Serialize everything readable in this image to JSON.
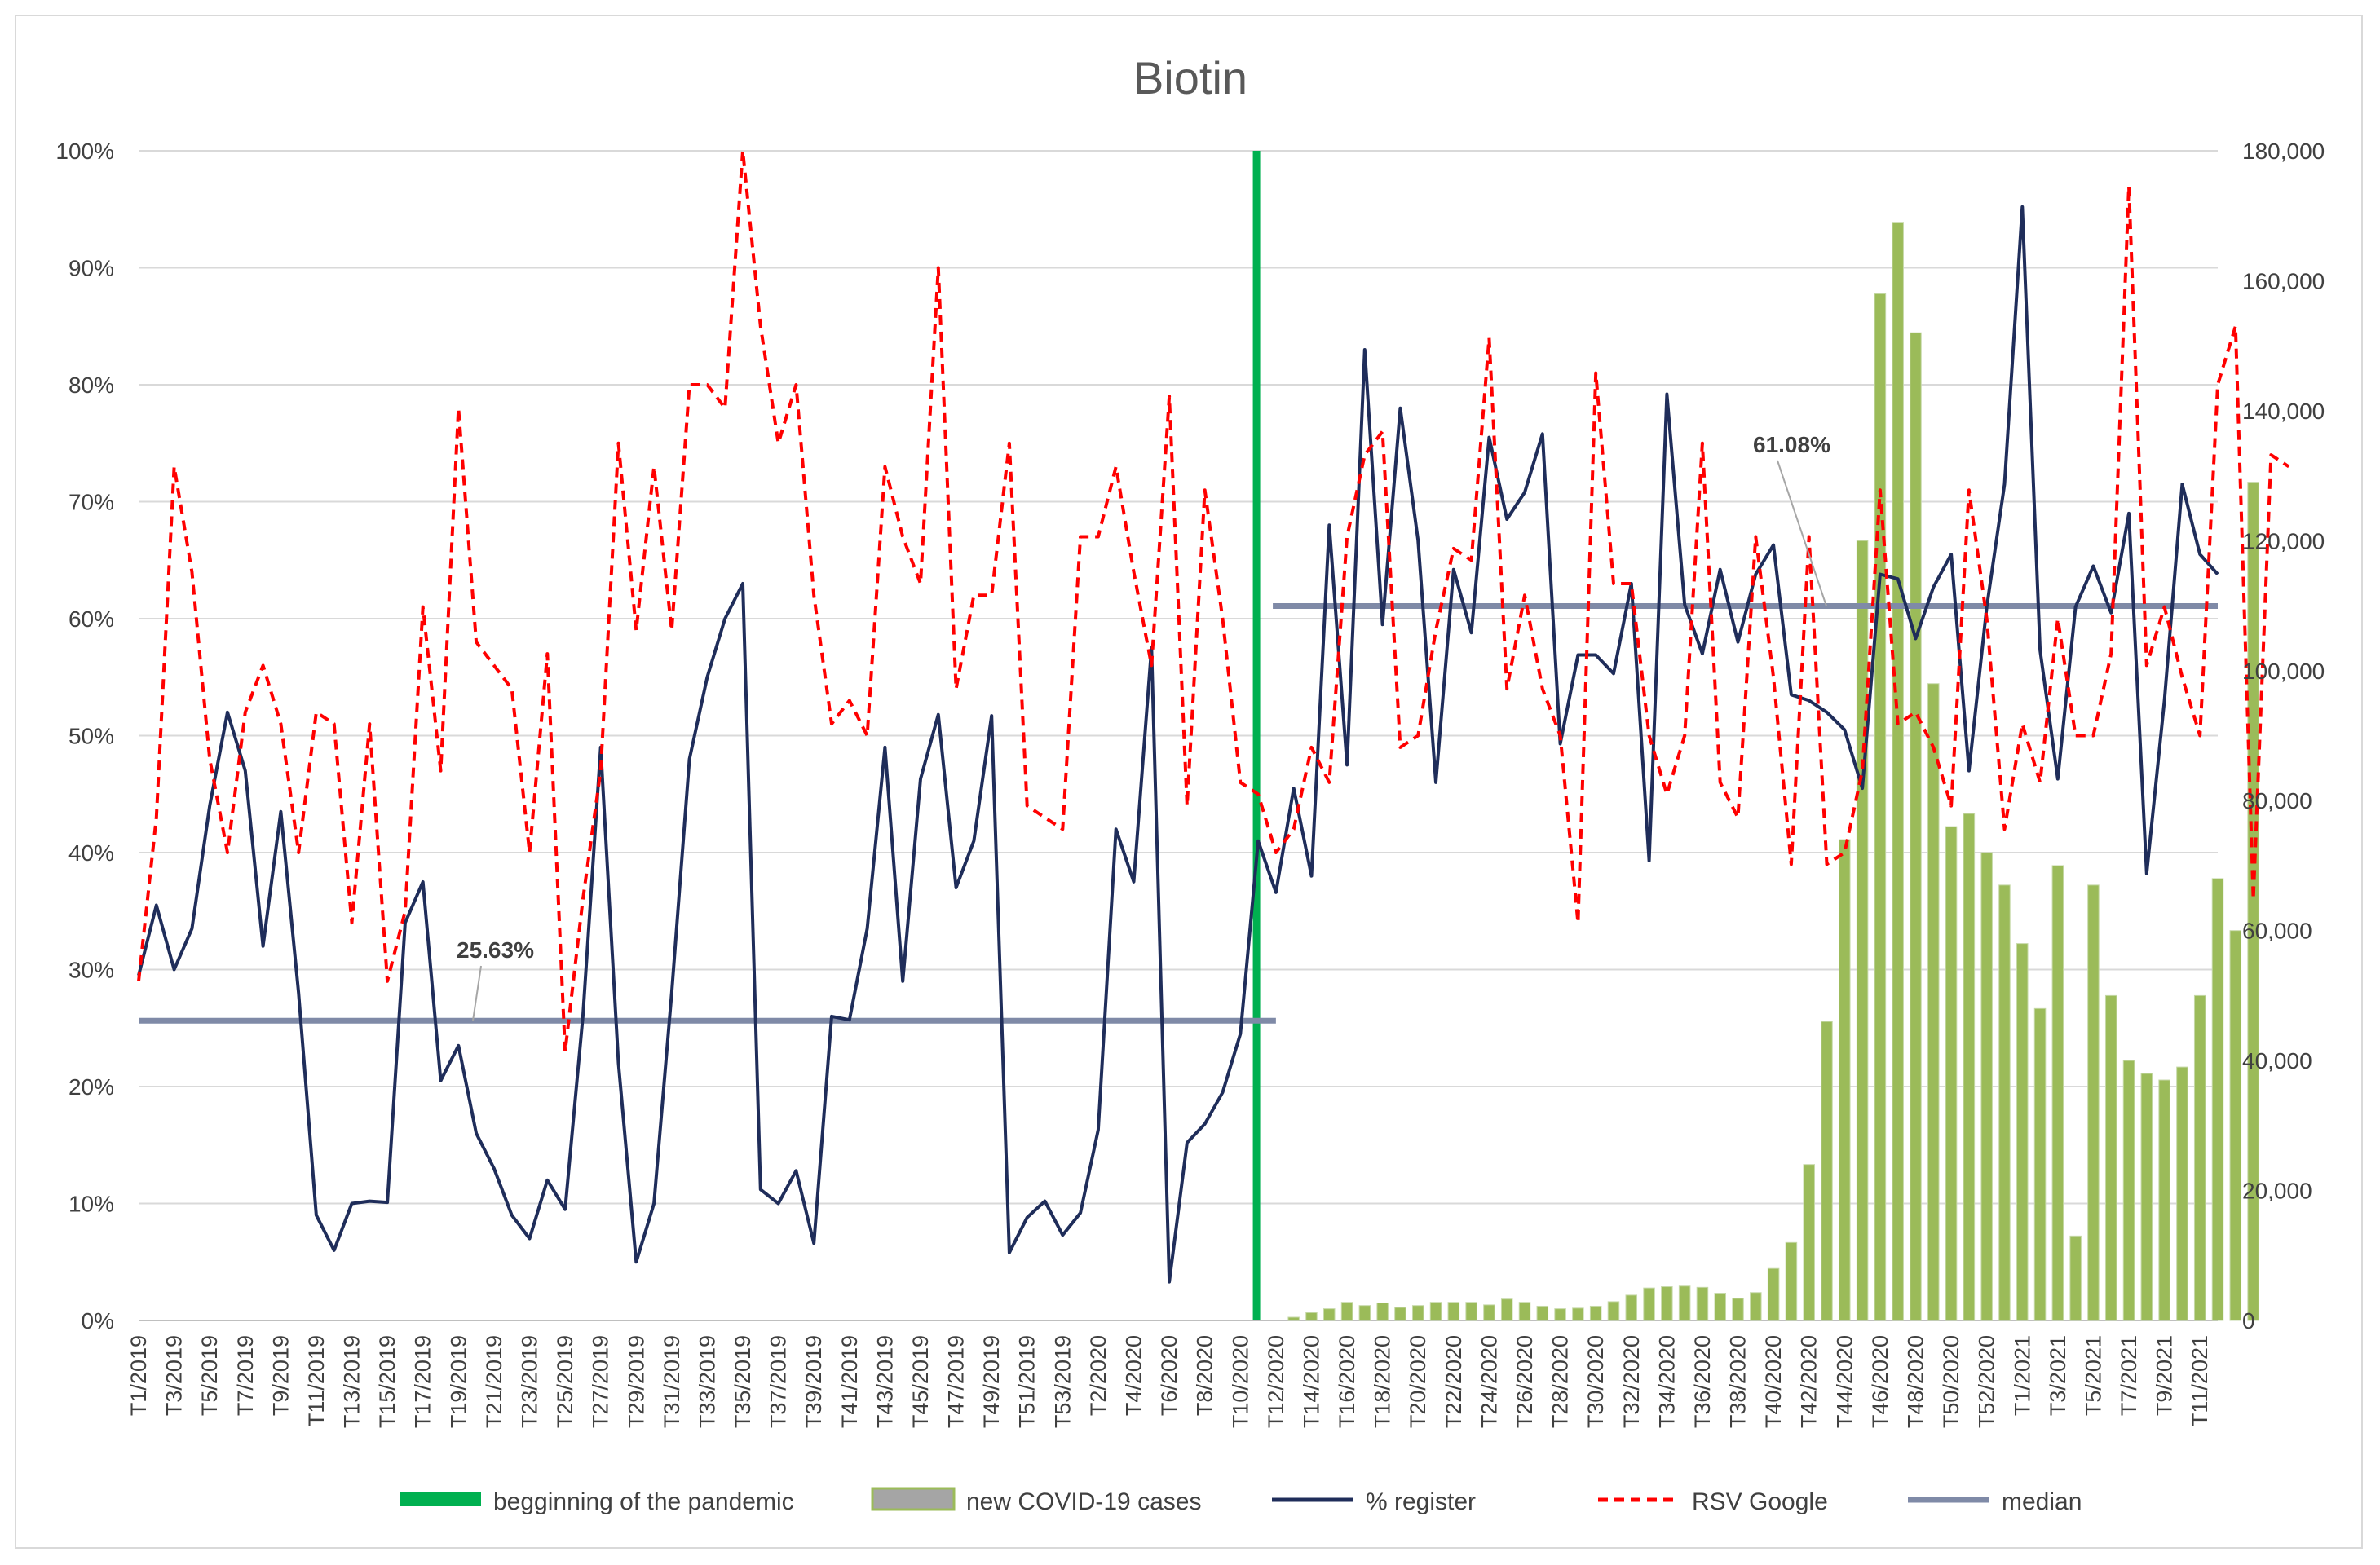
{
  "chart_data": {
    "type": "line",
    "title": "Biotin",
    "grid": true,
    "legend_position": "bottom",
    "y_left": {
      "ticks": [
        "0%",
        "10%",
        "20%",
        "30%",
        "40%",
        "50%",
        "60%",
        "70%",
        "80%",
        "90%",
        "100%"
      ],
      "range": [
        0,
        100
      ],
      "unit": "%"
    },
    "y_right": {
      "ticks": [
        "0",
        "20,000",
        "40,000",
        "60,000",
        "80,000",
        "100,000",
        "120,000",
        "140,000",
        "160,000",
        "180,000"
      ],
      "range": [
        0,
        180000
      ]
    },
    "x_tick_labels": [
      "T1/2019",
      "T3/2019",
      "T5/2019",
      "T7/2019",
      "T9/2019",
      "T11/2019",
      "T13/2019",
      "T15/2019",
      "T17/2019",
      "T19/2019",
      "T21/2019",
      "T23/2019",
      "T25/2019",
      "T27/2019",
      "T29/2019",
      "T31/2019",
      "T33/2019",
      "T35/2019",
      "T37/2019",
      "T39/2019",
      "T41/2019",
      "T43/2019",
      "T45/2019",
      "T47/2019",
      "T49/2019",
      "T51/2019",
      "T53/2019",
      "T2/2020",
      "T4/2020",
      "T6/2020",
      "T8/2020",
      "T10/2020",
      "T12/2020",
      "T14/2020",
      "T16/2020",
      "T18/2020",
      "T20/2020",
      "T22/2020",
      "T24/2020",
      "T26/2020",
      "T28/2020",
      "T30/2020",
      "T32/2020",
      "T34/2020",
      "T36/2020",
      "T38/2020",
      "T40/2020",
      "T42/2020",
      "T44/2020",
      "T46/2020",
      "T48/2020",
      "T50/2020",
      "T52/2020",
      "T1/2021",
      "T3/2021",
      "T5/2021",
      "T7/2021",
      "T9/2021",
      "T11/2021"
    ],
    "series": [
      {
        "name": "% register",
        "type": "line",
        "axis": "left",
        "color": "#1f2d5a",
        "values": [
          29.5,
          35.5,
          30,
          33.5,
          44,
          52,
          47,
          32,
          43.5,
          28,
          9,
          6,
          10,
          10.2,
          10.1,
          34,
          37.5,
          20.5,
          23.5,
          16,
          13,
          9,
          7,
          12,
          9.5,
          26,
          49,
          22,
          5,
          10,
          28,
          48,
          55,
          60,
          63,
          11.2,
          10,
          12.8,
          6.6,
          26,
          25.7,
          33.5,
          49,
          29,
          46.3,
          51.8,
          37,
          41,
          51.7,
          5.8,
          8.8,
          10.2,
          7.3,
          9.2,
          16.3,
          42,
          37.5,
          57.5,
          3.3,
          15.2,
          16.8,
          19.5,
          24.5,
          41,
          36.6,
          45.5,
          38,
          68,
          47.5,
          83,
          59.5,
          78,
          66.7,
          46,
          64.2,
          58.8,
          75.5,
          68.5,
          70.8,
          75.8,
          49.3,
          56.9,
          56.9,
          55.3,
          63,
          39.3,
          79.2,
          61.2,
          57,
          64.2,
          58,
          63.8,
          66.3,
          53.5,
          53,
          52,
          50.5,
          45.5,
          63.8,
          63.4,
          58.3,
          62.7,
          65.5,
          47,
          61,
          71.5,
          95.2,
          57.3,
          46.3,
          61,
          64.5,
          60.5,
          69,
          38.2,
          53,
          71.5,
          65.5,
          63.8
        ]
      },
      {
        "name": "RSV Google",
        "type": "line",
        "style": "dashed",
        "axis": "left",
        "color": "#ff0000",
        "values": [
          29,
          43,
          73,
          64,
          48,
          40,
          52,
          56,
          51,
          40,
          52,
          51,
          34,
          51,
          29,
          35,
          61,
          47,
          78,
          58,
          56,
          54,
          40,
          57,
          23,
          36,
          47,
          75,
          59,
          73,
          59,
          80,
          80,
          78,
          100,
          85,
          75,
          80,
          62,
          51,
          53,
          50,
          73,
          67,
          63,
          90,
          54,
          62,
          62,
          75,
          44,
          43,
          42,
          67,
          67,
          73,
          64,
          56,
          79,
          44,
          71,
          60,
          46,
          45,
          40,
          42,
          49,
          46,
          67,
          74,
          76,
          49,
          50,
          59,
          66,
          65,
          84,
          54,
          62,
          54,
          50,
          34,
          81,
          63,
          63,
          50,
          45,
          50,
          75,
          46,
          43,
          67,
          55,
          39,
          67,
          39,
          40,
          47,
          71,
          51,
          52,
          49,
          44,
          71,
          60,
          42,
          51,
          46,
          60,
          50,
          50,
          57,
          97,
          56,
          61,
          55,
          50,
          80,
          85,
          36,
          74,
          73
        ]
      },
      {
        "name": "new COVID-19 cases",
        "type": "bar",
        "axis": "right",
        "color": "#9bbb59",
        "start_label": "T11/2020",
        "values": [
          500,
          1200,
          1800,
          2800,
          2300,
          2700,
          2000,
          2300,
          2800,
          2800,
          2800,
          2400,
          3300,
          2800,
          2200,
          1800,
          1900,
          2200,
          2900,
          3900,
          5000,
          5200,
          5300,
          5100,
          4200,
          3400,
          4300,
          8000,
          12000,
          24000,
          46000,
          74000,
          120000,
          158000,
          169000,
          152000,
          98000,
          76000,
          78000,
          72000,
          67000,
          58000,
          48000,
          70000,
          13000,
          67000,
          50000,
          40000,
          38000,
          37000,
          39000,
          50000,
          68000,
          60000,
          129000
        ]
      },
      {
        "name": "median",
        "type": "line",
        "axis": "left",
        "color": "#7f8aa7",
        "segments": [
          {
            "from": "T1/2019",
            "to": "T10/2020",
            "value": 25.63,
            "label": "25.63%"
          },
          {
            "from": "T11/2020",
            "to": "T11/2021",
            "value": 61.08,
            "label": "61.08%"
          }
        ]
      },
      {
        "name": "begginning of the pandemic",
        "type": "vline",
        "color": "#00b050",
        "at": "T10/2020"
      }
    ],
    "legend": [
      "begginning of the pandemic",
      "new COVID-19 cases",
      "% register",
      "RSV Google",
      "median"
    ]
  }
}
